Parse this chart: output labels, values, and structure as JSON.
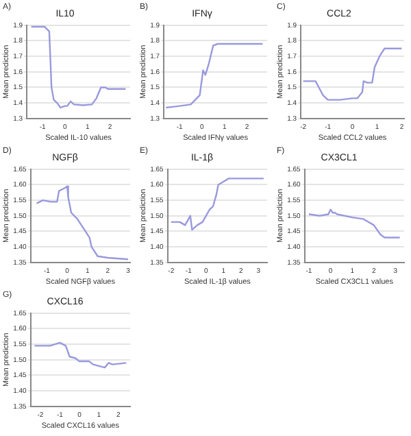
{
  "chart_data": [
    {
      "type": "line",
      "annotations": [
        "A)"
      ],
      "title": "IL10",
      "xlabel": "Scaled IL-10 values",
      "ylabel": "Mean prediction",
      "xlim": [
        -1.7,
        2.9
      ],
      "xticks": [
        -1,
        0,
        1,
        2
      ],
      "ylim": [
        1.3,
        1.9
      ],
      "yticks": [
        1.3,
        1.4,
        1.5,
        1.6,
        1.7,
        1.8,
        1.9
      ],
      "grid": "y",
      "legend": false,
      "marker": "none",
      "series": [
        {
          "color": "#9999dd",
          "x": [
            -1.5,
            -0.9,
            -0.7,
            -0.6,
            -0.5,
            -0.35,
            -0.2,
            0,
            0.1,
            0.25,
            0.4,
            0.8,
            1.2,
            1.4,
            1.6,
            1.8,
            1.9,
            2.7
          ],
          "values": [
            1.89,
            1.89,
            1.86,
            1.5,
            1.42,
            1.4,
            1.37,
            1.38,
            1.38,
            1.41,
            1.39,
            1.385,
            1.39,
            1.43,
            1.5,
            1.5,
            1.49,
            1.49
          ]
        }
      ]
    },
    {
      "type": "line",
      "annotations": [
        "B)"
      ],
      "title": "IFNγ",
      "xlabel": "Scaled IFNγ values",
      "ylabel": "Mean prediction",
      "xlim": [
        -1.7,
        2.9
      ],
      "xticks": [
        -1,
        0,
        1,
        2
      ],
      "ylim": [
        1.3,
        1.9
      ],
      "yticks": [
        1.3,
        1.4,
        1.5,
        1.6,
        1.7,
        1.8,
        1.9
      ],
      "grid": "y",
      "legend": false,
      "marker": "none",
      "series": [
        {
          "color": "#9999dd",
          "x": [
            -1.6,
            -1,
            -0.5,
            -0.3,
            -0.1,
            0.05,
            0.15,
            0.3,
            0.5,
            0.7,
            2.7
          ],
          "values": [
            1.37,
            1.38,
            1.39,
            1.42,
            1.45,
            1.61,
            1.58,
            1.65,
            1.77,
            1.78,
            1.78
          ]
        }
      ]
    },
    {
      "type": "line",
      "annotations": [
        "C)"
      ],
      "title": "CCL2",
      "xlabel": "Scaled CCL2 values",
      "ylabel": "Mean prediction",
      "xlim": [
        -2.1,
        2.1
      ],
      "xticks": [
        -2,
        -1,
        0,
        1,
        2
      ],
      "ylim": [
        1.3,
        1.9
      ],
      "yticks": [
        1.3,
        1.4,
        1.5,
        1.6,
        1.7,
        1.8,
        1.9
      ],
      "grid": "y",
      "legend": false,
      "marker": "none",
      "series": [
        {
          "color": "#9999dd",
          "x": [
            -2,
            -1.5,
            -1.2,
            -1,
            -0.5,
            0,
            0.2,
            0.4,
            0.45,
            0.6,
            0.8,
            0.9,
            1.1,
            1.3,
            2
          ],
          "values": [
            1.54,
            1.54,
            1.45,
            1.42,
            1.42,
            1.43,
            1.43,
            1.47,
            1.54,
            1.53,
            1.53,
            1.63,
            1.7,
            1.75,
            1.75
          ]
        }
      ]
    },
    {
      "type": "line",
      "annotations": [
        "D)"
      ],
      "title": "NGFβ",
      "xlabel": "Scaled NGFβ values",
      "ylabel": "Mean prediction",
      "xlim": [
        -1.8,
        3.1
      ],
      "xticks": [
        -1,
        0,
        1,
        2,
        3
      ],
      "ylim": [
        1.35,
        1.65
      ],
      "yticks": [
        {
          "value": 1.35,
          "label": "1.35"
        },
        {
          "value": 1.4,
          "label": "1.40"
        },
        {
          "value": 1.45,
          "label": "1.45"
        },
        {
          "value": 1.5,
          "label": "1.50"
        },
        {
          "value": 1.55,
          "label": "1.55"
        },
        {
          "value": 1.6,
          "label": "1.60"
        },
        {
          "value": 1.65,
          "label": "1.65"
        }
      ],
      "grid": "y",
      "legend": false,
      "marker": "none",
      "series": [
        {
          "color": "#9999dd",
          "x": [
            -1.5,
            -1.2,
            -0.8,
            -0.5,
            -0.4,
            -0.1,
            0,
            0.05,
            0.2,
            0.5,
            0.7,
            0.9,
            1.1,
            1.2,
            1.5,
            2,
            3
          ],
          "values": [
            1.54,
            1.55,
            1.545,
            1.545,
            1.58,
            1.59,
            1.595,
            1.56,
            1.51,
            1.49,
            1.47,
            1.45,
            1.43,
            1.4,
            1.37,
            1.365,
            1.36
          ]
        }
      ]
    },
    {
      "type": "line",
      "annotations": [
        "E)"
      ],
      "title": "IL-1β",
      "xlabel": "Scaled IL-1β values",
      "ylabel": "Mean prediction",
      "xlim": [
        -2.2,
        3.5
      ],
      "xticks": [
        -2,
        -1,
        0,
        1,
        2,
        3
      ],
      "ylim": [
        1.35,
        1.65
      ],
      "yticks": [
        {
          "value": 1.35,
          "label": "1.35"
        },
        {
          "value": 1.4,
          "label": "1.40"
        },
        {
          "value": 1.45,
          "label": "1.45"
        },
        {
          "value": 1.5,
          "label": "1.50"
        },
        {
          "value": 1.55,
          "label": "1.55"
        },
        {
          "value": 1.6,
          "label": "1.60"
        },
        {
          "value": 1.65,
          "label": "1.65"
        }
      ],
      "grid": "y",
      "legend": false,
      "marker": "none",
      "series": [
        {
          "color": "#9999dd",
          "x": [
            -2,
            -1.5,
            -1.2,
            -0.9,
            -0.8,
            -0.5,
            -0.2,
            0,
            0.2,
            0.4,
            0.6,
            0.7,
            1,
            1.3,
            3.3
          ],
          "values": [
            1.48,
            1.48,
            1.47,
            1.5,
            1.455,
            1.47,
            1.48,
            1.5,
            1.52,
            1.53,
            1.57,
            1.6,
            1.61,
            1.62,
            1.62
          ]
        }
      ]
    },
    {
      "type": "line",
      "annotations": [
        "F)"
      ],
      "title": "CX3CL1",
      "xlabel": "Scaled CX3CL1 values",
      "ylabel": "Mean prediction",
      "xlim": [
        -1.2,
        3.4
      ],
      "xticks": [
        -1,
        0,
        1,
        2,
        3
      ],
      "ylim": [
        1.35,
        1.65
      ],
      "yticks": [
        {
          "value": 1.35,
          "label": "1.35"
        },
        {
          "value": 1.4,
          "label": "1.40"
        },
        {
          "value": 1.45,
          "label": "1.45"
        },
        {
          "value": 1.5,
          "label": "1.50"
        },
        {
          "value": 1.55,
          "label": "1.55"
        },
        {
          "value": 1.6,
          "label": "1.60"
        },
        {
          "value": 1.65,
          "label": "1.65"
        }
      ],
      "grid": "y",
      "legend": false,
      "marker": "none",
      "series": [
        {
          "color": "#9999dd",
          "x": [
            -1,
            -0.5,
            -0.1,
            0,
            0.1,
            0.2,
            0.3,
            1,
            1.5,
            2,
            2.3,
            2.5,
            3.2
          ],
          "values": [
            1.505,
            1.5,
            1.505,
            1.52,
            1.51,
            1.51,
            1.505,
            1.495,
            1.49,
            1.47,
            1.44,
            1.43,
            1.43
          ]
        }
      ]
    },
    {
      "type": "line",
      "annotations": [
        "G)"
      ],
      "title": "CXCL16",
      "xlabel": "Scaled CXCL16 values",
      "ylabel": "Mean prediction",
      "xlim": [
        -2.5,
        2.6
      ],
      "xticks": [
        -2,
        -1,
        0,
        1,
        2
      ],
      "ylim": [
        1.35,
        1.65
      ],
      "yticks": [
        {
          "value": 1.35,
          "label": "1.35"
        },
        {
          "value": 1.4,
          "label": "1.40"
        },
        {
          "value": 1.45,
          "label": "1.45"
        },
        {
          "value": 1.5,
          "label": "1.50"
        },
        {
          "value": 1.55,
          "label": "1.55"
        },
        {
          "value": 1.6,
          "label": "1.60"
        },
        {
          "value": 1.65,
          "label": "1.65"
        }
      ],
      "grid": "y",
      "legend": false,
      "marker": "none",
      "series": [
        {
          "color": "#9999dd",
          "x": [
            -2.3,
            -1.5,
            -1,
            -0.7,
            -0.5,
            -0.2,
            0,
            0.5,
            0.7,
            1,
            1.3,
            1.5,
            1.7,
            2.4
          ],
          "values": [
            1.545,
            1.545,
            1.555,
            1.545,
            1.51,
            1.505,
            1.495,
            1.495,
            1.485,
            1.48,
            1.475,
            1.49,
            1.485,
            1.49
          ]
        }
      ]
    }
  ]
}
